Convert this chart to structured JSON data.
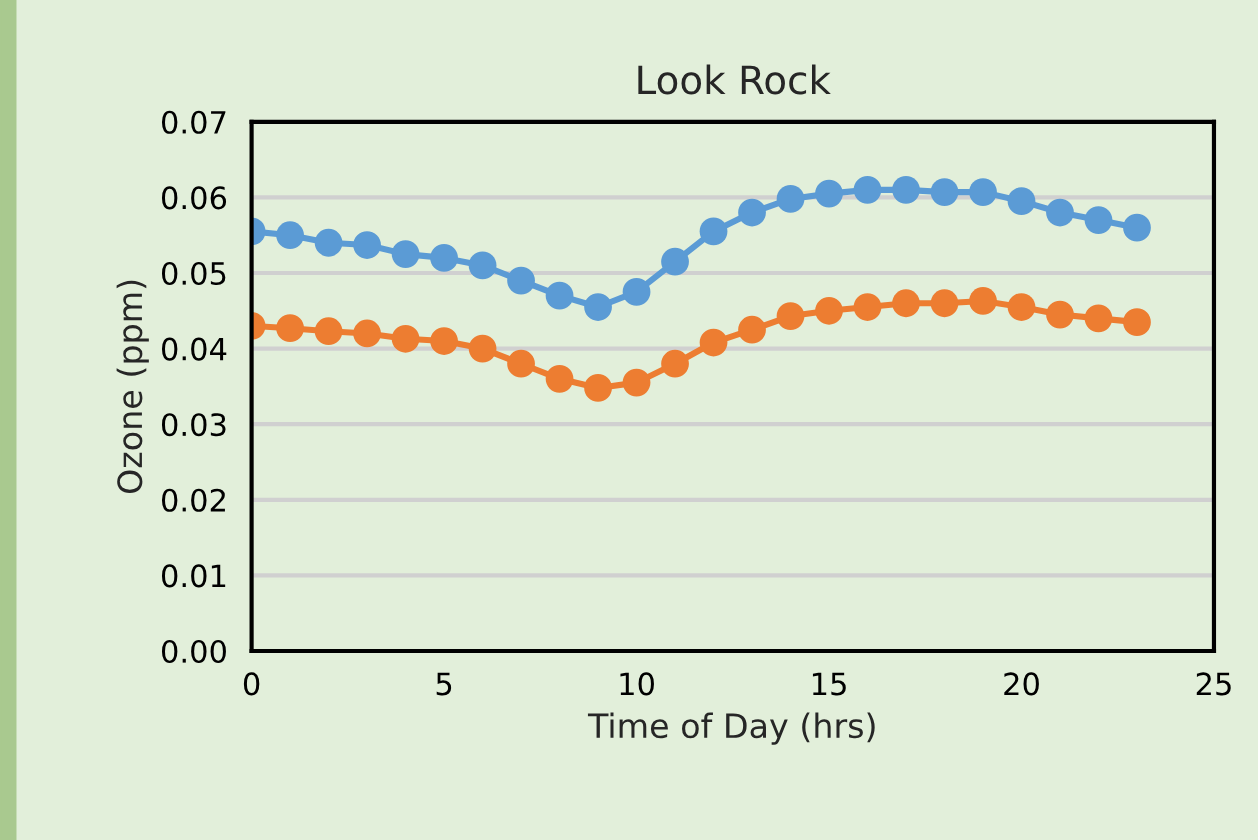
{
  "chart_data": {
    "type": "line",
    "title": "Look Rock",
    "xlabel": "Time of Day (hrs)",
    "ylabel": "Ozone (ppm)",
    "x": [
      0,
      1,
      2,
      3,
      4,
      5,
      6,
      7,
      8,
      9,
      10,
      11,
      12,
      13,
      14,
      15,
      16,
      17,
      18,
      19,
      20,
      21,
      22,
      23
    ],
    "series": [
      {
        "color": "#5b9bd5",
        "values": [
          0.0555,
          0.055,
          0.054,
          0.0537,
          0.0525,
          0.052,
          0.051,
          0.049,
          0.047,
          0.0455,
          0.0475,
          0.0515,
          0.0555,
          0.058,
          0.0598,
          0.0605,
          0.061,
          0.061,
          0.0607,
          0.0607,
          0.0595,
          0.058,
          0.057,
          0.056
        ]
      },
      {
        "color": "#ed7d31",
        "values": [
          0.043,
          0.0427,
          0.0423,
          0.042,
          0.0413,
          0.041,
          0.04,
          0.038,
          0.036,
          0.0348,
          0.0355,
          0.038,
          0.0408,
          0.0425,
          0.0443,
          0.045,
          0.0455,
          0.046,
          0.046,
          0.0463,
          0.0455,
          0.0445,
          0.044,
          0.0435
        ]
      }
    ],
    "xlim": [
      0,
      25
    ],
    "xticks": [
      0,
      5,
      10,
      15,
      20,
      25
    ],
    "ylim": [
      0,
      0.07
    ],
    "yticks": [
      {
        "value": 0,
        "label": "0.00"
      },
      {
        "value": 0.01,
        "label": "0.01"
      },
      {
        "value": 0.02,
        "label": "0.02"
      },
      {
        "value": 0.03,
        "label": "0.03"
      },
      {
        "value": 0.04,
        "label": "0.04"
      },
      {
        "value": 0.05,
        "label": "0.05"
      },
      {
        "value": 0.06,
        "label": "0.06"
      },
      {
        "value": 0.07,
        "label": "0.07"
      }
    ],
    "grid": "y",
    "marker": "circle",
    "line_style": "solid"
  }
}
